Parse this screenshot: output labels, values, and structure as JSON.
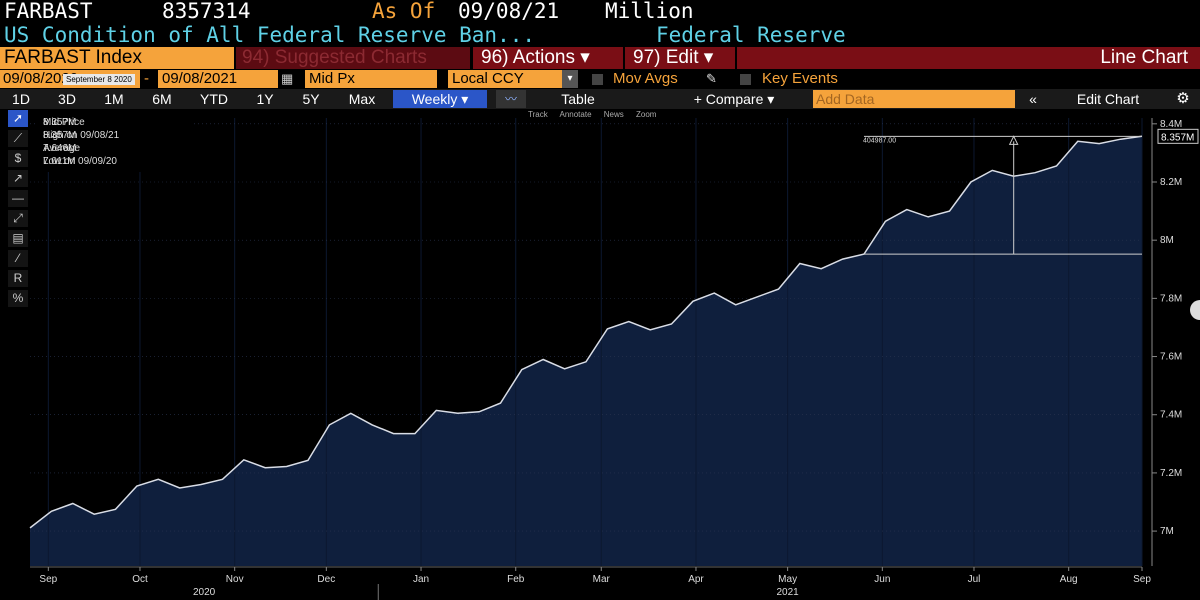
{
  "header": {
    "ticker": "FARBAST",
    "value": "8357314",
    "as_of_label": "As Of",
    "as_of_date": "09/08/21",
    "unit": "Million",
    "description": "US Condition of All Federal Reserve Ban...",
    "source": "Federal Reserve"
  },
  "toolbar": {
    "index_name": "FARBAST Index",
    "suggested": "94) Suggested Charts",
    "actions": "96) Actions ▾",
    "edit": "97) Edit ▾",
    "chart_type": "Line Chart"
  },
  "controls": {
    "start_date": "09/08/2020",
    "start_tooltip": "September 8 2020",
    "dash": "-",
    "end_date": "09/08/2021",
    "price_field": "Mid Px",
    "currency": "Local CCY",
    "mov_avgs": "Mov Avgs",
    "key_events": "Key Events"
  },
  "timeframes": [
    "1D",
    "3D",
    "1M",
    "6M",
    "YTD",
    "1Y",
    "5Y",
    "Max"
  ],
  "period": "Weekly ▾",
  "table_label": "Table",
  "compare_label": "+ Compare ▾",
  "add_data_placeholder": "Add Data",
  "edit_chart_label": "Edit Chart",
  "subtabs": [
    "Track",
    "Annotate",
    "News",
    "Zoom"
  ],
  "legend": {
    "series": "Mid Price",
    "series_value": "8.357M",
    "high_label": "High on 09/08/21",
    "high_value": "8.357M",
    "avg_label": "Average",
    "avg_value": "7.646M",
    "low_label": "Low on 09/09/20",
    "low_value": "7.011M"
  },
  "colors": {
    "accent": "#f5a33b",
    "title_cyan": "#5fd1e6",
    "area_fill": "#0f1f3d",
    "line": "#d9dde6"
  },
  "chart_data": {
    "type": "area",
    "y_unit": "Million",
    "x_start": "2020-09-09",
    "x_end": "2021-09-08",
    "ylim": [
      6.88,
      8.42
    ],
    "y_ticks": [
      7.0,
      7.2,
      7.4,
      7.6,
      7.8,
      8.0,
      8.2,
      8.4
    ],
    "y_tick_labels": [
      "7M",
      "7.2M",
      "7.4M",
      "7.6M",
      "7.8M",
      "8M",
      "8.2M",
      "8.4M"
    ],
    "last_value_label": "8.357M",
    "month_ticks": [
      {
        "label": "Sep",
        "date": "2020-09-15"
      },
      {
        "label": "Oct",
        "date": "2020-10-15"
      },
      {
        "label": "Nov",
        "date": "2020-11-15"
      },
      {
        "label": "Dec",
        "date": "2020-12-15"
      },
      {
        "label": "Jan",
        "date": "2021-01-15"
      },
      {
        "label": "Feb",
        "date": "2021-02-15"
      },
      {
        "label": "Mar",
        "date": "2021-03-15"
      },
      {
        "label": "Apr",
        "date": "2021-04-15"
      },
      {
        "label": "May",
        "date": "2021-05-15"
      },
      {
        "label": "Jun",
        "date": "2021-06-15"
      },
      {
        "label": "Jul",
        "date": "2021-07-15"
      },
      {
        "label": "Aug",
        "date": "2021-08-15"
      },
      {
        "label": "Sep",
        "date": "2021-09-08"
      }
    ],
    "year_labels": [
      {
        "label": "2020",
        "date": "2020-11-05"
      },
      {
        "label": "2021",
        "date": "2021-05-15"
      }
    ],
    "year_dividers": [
      "2021-01-01"
    ],
    "annotation": {
      "text": "404987.00",
      "from_date": "2021-06-09",
      "to_date": "2021-09-08",
      "low_value": 7.952,
      "high_value": 8.357,
      "arrow_date": "2021-07-28"
    },
    "series": [
      {
        "name": "Mid Price",
        "values": [
          7.011,
          7.068,
          7.095,
          7.058,
          7.075,
          7.155,
          7.178,
          7.148,
          7.16,
          7.178,
          7.245,
          7.218,
          7.222,
          7.243,
          7.365,
          7.405,
          7.365,
          7.335,
          7.335,
          7.415,
          7.405,
          7.41,
          7.44,
          7.555,
          7.59,
          7.558,
          7.582,
          7.695,
          7.72,
          7.692,
          7.712,
          7.79,
          7.818,
          7.778,
          7.805,
          7.832,
          7.92,
          7.902,
          7.935,
          7.952,
          8.065,
          8.105,
          8.08,
          8.1,
          8.2,
          8.24,
          8.22,
          8.232,
          8.255,
          8.34,
          8.332,
          8.347,
          8.357
        ]
      }
    ]
  }
}
